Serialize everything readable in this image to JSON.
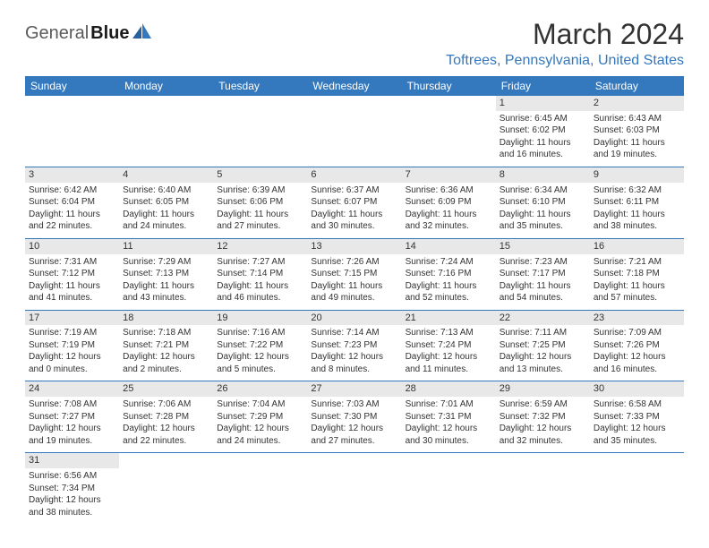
{
  "logo": {
    "part1": "General",
    "part2": "Blue"
  },
  "title": "March 2024",
  "location": "Toftrees, Pennsylvania, United States",
  "colors": {
    "header_bg": "#3478bd",
    "header_text": "#ffffff",
    "location_text": "#3478bd",
    "daynum_bg": "#e8e8e8",
    "border": "#3478bd"
  },
  "dayHeaders": [
    "Sunday",
    "Monday",
    "Tuesday",
    "Wednesday",
    "Thursday",
    "Friday",
    "Saturday"
  ],
  "weeks": [
    [
      null,
      null,
      null,
      null,
      null,
      {
        "n": "1",
        "sunrise": "6:45 AM",
        "sunset": "6:02 PM",
        "daylight": "11 hours and 16 minutes."
      },
      {
        "n": "2",
        "sunrise": "6:43 AM",
        "sunset": "6:03 PM",
        "daylight": "11 hours and 19 minutes."
      }
    ],
    [
      {
        "n": "3",
        "sunrise": "6:42 AM",
        "sunset": "6:04 PM",
        "daylight": "11 hours and 22 minutes."
      },
      {
        "n": "4",
        "sunrise": "6:40 AM",
        "sunset": "6:05 PM",
        "daylight": "11 hours and 24 minutes."
      },
      {
        "n": "5",
        "sunrise": "6:39 AM",
        "sunset": "6:06 PM",
        "daylight": "11 hours and 27 minutes."
      },
      {
        "n": "6",
        "sunrise": "6:37 AM",
        "sunset": "6:07 PM",
        "daylight": "11 hours and 30 minutes."
      },
      {
        "n": "7",
        "sunrise": "6:36 AM",
        "sunset": "6:09 PM",
        "daylight": "11 hours and 32 minutes."
      },
      {
        "n": "8",
        "sunrise": "6:34 AM",
        "sunset": "6:10 PM",
        "daylight": "11 hours and 35 minutes."
      },
      {
        "n": "9",
        "sunrise": "6:32 AM",
        "sunset": "6:11 PM",
        "daylight": "11 hours and 38 minutes."
      }
    ],
    [
      {
        "n": "10",
        "sunrise": "7:31 AM",
        "sunset": "7:12 PM",
        "daylight": "11 hours and 41 minutes."
      },
      {
        "n": "11",
        "sunrise": "7:29 AM",
        "sunset": "7:13 PM",
        "daylight": "11 hours and 43 minutes."
      },
      {
        "n": "12",
        "sunrise": "7:27 AM",
        "sunset": "7:14 PM",
        "daylight": "11 hours and 46 minutes."
      },
      {
        "n": "13",
        "sunrise": "7:26 AM",
        "sunset": "7:15 PM",
        "daylight": "11 hours and 49 minutes."
      },
      {
        "n": "14",
        "sunrise": "7:24 AM",
        "sunset": "7:16 PM",
        "daylight": "11 hours and 52 minutes."
      },
      {
        "n": "15",
        "sunrise": "7:23 AM",
        "sunset": "7:17 PM",
        "daylight": "11 hours and 54 minutes."
      },
      {
        "n": "16",
        "sunrise": "7:21 AM",
        "sunset": "7:18 PM",
        "daylight": "11 hours and 57 minutes."
      }
    ],
    [
      {
        "n": "17",
        "sunrise": "7:19 AM",
        "sunset": "7:19 PM",
        "daylight": "12 hours and 0 minutes."
      },
      {
        "n": "18",
        "sunrise": "7:18 AM",
        "sunset": "7:21 PM",
        "daylight": "12 hours and 2 minutes."
      },
      {
        "n": "19",
        "sunrise": "7:16 AM",
        "sunset": "7:22 PM",
        "daylight": "12 hours and 5 minutes."
      },
      {
        "n": "20",
        "sunrise": "7:14 AM",
        "sunset": "7:23 PM",
        "daylight": "12 hours and 8 minutes."
      },
      {
        "n": "21",
        "sunrise": "7:13 AM",
        "sunset": "7:24 PM",
        "daylight": "12 hours and 11 minutes."
      },
      {
        "n": "22",
        "sunrise": "7:11 AM",
        "sunset": "7:25 PM",
        "daylight": "12 hours and 13 minutes."
      },
      {
        "n": "23",
        "sunrise": "7:09 AM",
        "sunset": "7:26 PM",
        "daylight": "12 hours and 16 minutes."
      }
    ],
    [
      {
        "n": "24",
        "sunrise": "7:08 AM",
        "sunset": "7:27 PM",
        "daylight": "12 hours and 19 minutes."
      },
      {
        "n": "25",
        "sunrise": "7:06 AM",
        "sunset": "7:28 PM",
        "daylight": "12 hours and 22 minutes."
      },
      {
        "n": "26",
        "sunrise": "7:04 AM",
        "sunset": "7:29 PM",
        "daylight": "12 hours and 24 minutes."
      },
      {
        "n": "27",
        "sunrise": "7:03 AM",
        "sunset": "7:30 PM",
        "daylight": "12 hours and 27 minutes."
      },
      {
        "n": "28",
        "sunrise": "7:01 AM",
        "sunset": "7:31 PM",
        "daylight": "12 hours and 30 minutes."
      },
      {
        "n": "29",
        "sunrise": "6:59 AM",
        "sunset": "7:32 PM",
        "daylight": "12 hours and 32 minutes."
      },
      {
        "n": "30",
        "sunrise": "6:58 AM",
        "sunset": "7:33 PM",
        "daylight": "12 hours and 35 minutes."
      }
    ],
    [
      {
        "n": "31",
        "sunrise": "6:56 AM",
        "sunset": "7:34 PM",
        "daylight": "12 hours and 38 minutes."
      },
      null,
      null,
      null,
      null,
      null,
      null
    ]
  ],
  "labels": {
    "sunrise": "Sunrise: ",
    "sunset": "Sunset: ",
    "daylight": "Daylight: "
  }
}
